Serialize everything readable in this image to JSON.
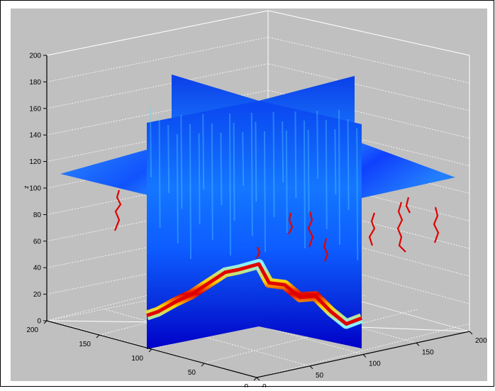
{
  "chart_data": {
    "type": "volume-slice",
    "title": "",
    "xlabel": "",
    "ylabel": "",
    "zlabel": "z",
    "x_ticks": [
      "0",
      "50",
      "100",
      "150",
      "200"
    ],
    "y_ticks": [
      "0",
      "50",
      "100",
      "150",
      "200"
    ],
    "z_ticks": [
      "0",
      "20",
      "40",
      "60",
      "80",
      "100",
      "120",
      "140",
      "160",
      "180",
      "200"
    ],
    "xlim": [
      0,
      200
    ],
    "ylim": [
      0,
      200
    ],
    "zlim": [
      0,
      200
    ],
    "grid": true,
    "colormap": "jet",
    "slices": [
      {
        "plane": "x",
        "value": 100
      },
      {
        "plane": "y",
        "value": 100
      },
      {
        "plane": "z",
        "value": 110
      }
    ],
    "red_band_surface": [
      {
        "t": 0.0,
        "z": 22
      },
      {
        "t": 0.1,
        "z": 23
      },
      {
        "t": 0.25,
        "z": 27
      },
      {
        "t": 0.4,
        "z": 30
      },
      {
        "t": 0.55,
        "z": 35
      },
      {
        "t": 0.7,
        "z": 40
      },
      {
        "t": 0.82,
        "z": 40
      },
      {
        "t": 1.0,
        "z": 41
      },
      {
        "t": 1.1,
        "z": 30
      },
      {
        "t": 1.25,
        "z": 31
      },
      {
        "t": 1.4,
        "z": 25
      },
      {
        "t": 1.55,
        "z": 28
      },
      {
        "t": 1.7,
        "z": 20
      },
      {
        "t": 1.85,
        "z": 14
      },
      {
        "t": 2.0,
        "z": 20
      }
    ]
  },
  "colors": {
    "background": "#c0c0c0",
    "deep_blue": "#0000c8",
    "blue": "#0a3cff",
    "cyan": "#22c8ff",
    "green": "#50ff90",
    "red": "#e00000",
    "orange": "#ffa000",
    "grid": "#ffffff"
  }
}
